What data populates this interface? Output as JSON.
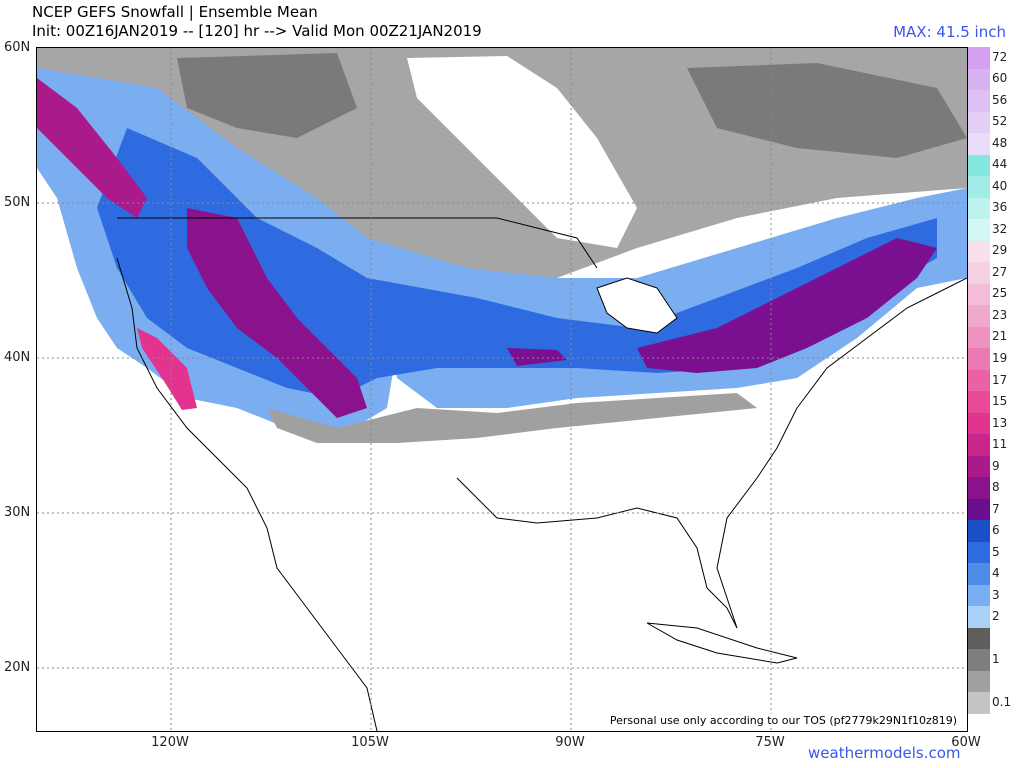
{
  "header": {
    "title": "NCEP GEFS Snowfall | Ensemble Mean",
    "subtitle": "Init: 00Z16JAN2019 -- [120] hr --> Valid Mon 00Z21JAN2019",
    "max_label": "MAX: 41.5 inch"
  },
  "axes": {
    "lat_labels": [
      "60N",
      "50N",
      "40N",
      "30N",
      "20N"
    ],
    "lon_labels": [
      "120W",
      "105W",
      "90W",
      "75W",
      "60W"
    ]
  },
  "credit": "Personal use only according to our TOS (pf2779k29N1f10z819)",
  "site": "weathermodels.com",
  "colorbar": {
    "levels": [
      {
        "label": "72",
        "color": "#d4a0ef"
      },
      {
        "label": "60",
        "color": "#d9b2f2"
      },
      {
        "label": "56",
        "color": "#dfc0f4"
      },
      {
        "label": "52",
        "color": "#e4d0f7"
      },
      {
        "label": "48",
        "color": "#e9ddf9"
      },
      {
        "label": "44",
        "color": "#86e7de"
      },
      {
        "label": "40",
        "color": "#a3ede7"
      },
      {
        "label": "36",
        "color": "#bdf2ed"
      },
      {
        "label": "32",
        "color": "#d3f7f4"
      },
      {
        "label": "29",
        "color": "#f7e0ec"
      },
      {
        "label": "27",
        "color": "#f5cfe2"
      },
      {
        "label": "25",
        "color": "#f3bdd8"
      },
      {
        "label": "23",
        "color": "#f0a8cc"
      },
      {
        "label": "21",
        "color": "#ee92bf"
      },
      {
        "label": "19",
        "color": "#ec7ab2"
      },
      {
        "label": "17",
        "color": "#ea62a5"
      },
      {
        "label": "15",
        "color": "#e84a98"
      },
      {
        "label": "13",
        "color": "#e2348f"
      },
      {
        "label": "11",
        "color": "#c8268a"
      },
      {
        "label": "9",
        "color": "#aa1a8a"
      },
      {
        "label": "8",
        "color": "#8a128c"
      },
      {
        "label": "7",
        "color": "#6a0e90"
      },
      {
        "label": "6",
        "color": "#1a4fc8"
      },
      {
        "label": "5",
        "color": "#2f6be0"
      },
      {
        "label": "4",
        "color": "#4f8cea"
      },
      {
        "label": "3",
        "color": "#7aaef0"
      },
      {
        "label": "2",
        "color": "#a9d2f6"
      },
      {
        "label": "",
        "color": "#5e5e5e"
      },
      {
        "label": "1",
        "color": "#7e7e7e"
      },
      {
        "label": "",
        "color": "#a0a0a0"
      },
      {
        "label": "0.1",
        "color": "#c4c4c4"
      }
    ]
  },
  "legend_meaning": "inch"
}
